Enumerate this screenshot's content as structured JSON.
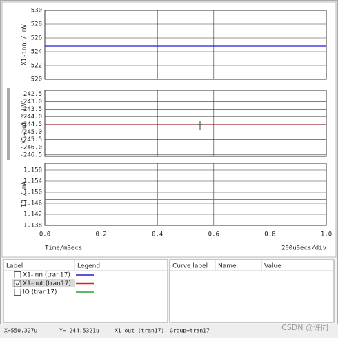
{
  "chart_data": [
    {
      "type": "line",
      "ylabel": "X1-inn / mV",
      "x": [
        0,
        1
      ],
      "xlim": [
        0,
        1
      ],
      "ylim": [
        520,
        530
      ],
      "yticks": [
        520,
        522,
        524,
        526,
        528,
        530
      ],
      "grid": true,
      "series": [
        {
          "name": "X1-inn (tran17)",
          "color": "#1f1fd6",
          "values": [
            524.8,
            524.8
          ]
        }
      ]
    },
    {
      "type": "line",
      "ylabel": "X1-out / uV",
      "x": [
        0,
        1
      ],
      "xlim": [
        0,
        1
      ],
      "ylim": [
        -246.6,
        -242.25
      ],
      "yticks": [
        -242.5,
        {
          "value": -243,
          "label": "-243.0"
        },
        -243.5,
        {
          "value": -244,
          "label": "-244.0"
        },
        -244.5,
        {
          "value": -245,
          "label": "-245.0"
        },
        -245.5,
        {
          "value": -246,
          "label": "-246.0"
        },
        -246.5
      ],
      "grid": true,
      "series": [
        {
          "name": "X1-out (tran17)",
          "color": "#e02020",
          "values": [
            -244.53,
            -244.53
          ]
        }
      ]
    },
    {
      "type": "line",
      "ylabel": "IQ / mA",
      "x": [
        0,
        1
      ],
      "xlim": [
        0,
        1
      ],
      "ylim": [
        1.138,
        1.1605
      ],
      "yticks": [
        1.138,
        1.142,
        1.146,
        {
          "value": 1.15,
          "label": "1.150"
        },
        1.154,
        1.158
      ],
      "grid": true,
      "xticks": [
        {
          "value": 0,
          "label": "0.0"
        },
        0.2,
        0.4,
        0.6,
        0.8,
        {
          "value": 1,
          "label": "1.0"
        }
      ],
      "xlabel": "Time/mSecs",
      "xscale_note": "200uSecs/div",
      "series": [
        {
          "name": "IQ (tran17)",
          "color": "#2ca02c",
          "values": [
            1.1473,
            1.1473
          ]
        }
      ]
    }
  ],
  "legend_panel": {
    "headers": [
      "Label",
      "Legend"
    ],
    "checked": [
      false,
      true,
      false
    ]
  },
  "curve_panel": {
    "headers": [
      "Curve label",
      "Name",
      "Value"
    ]
  },
  "status_bar": [
    "X=550.327u",
    "Y=-244.5321u",
    "X1-out (tran17)",
    "Group=tran17"
  ],
  "watermark": "CSDN @许同"
}
